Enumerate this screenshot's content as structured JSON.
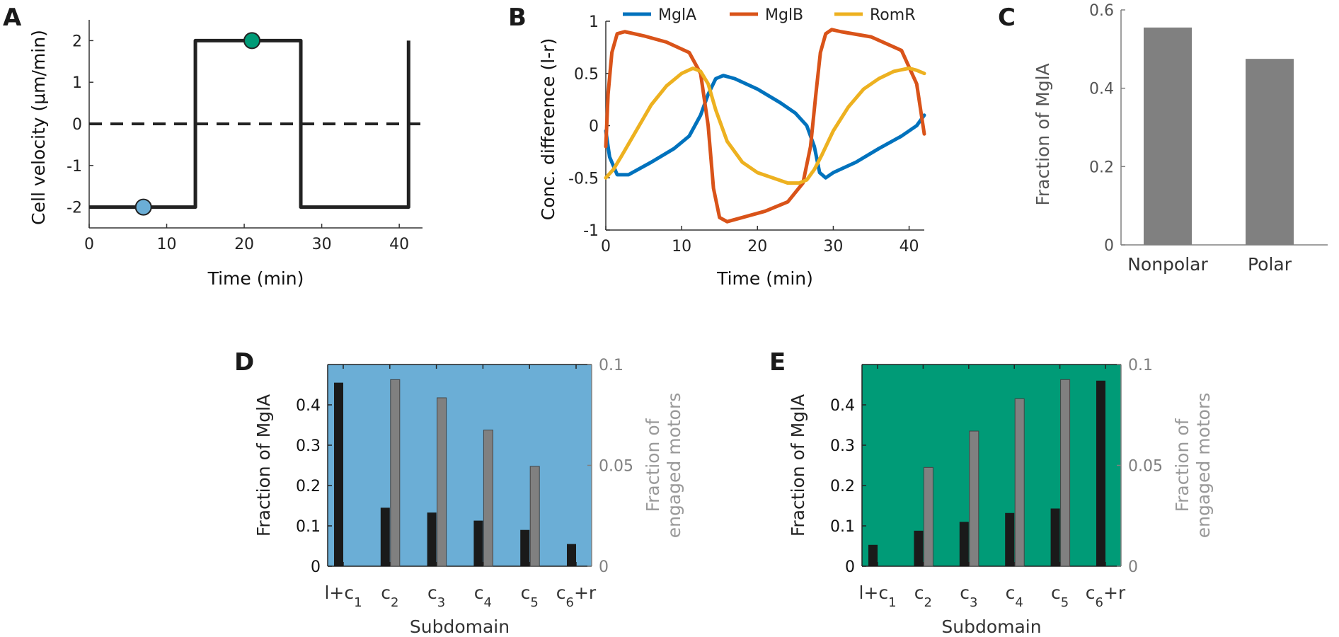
{
  "panels": {
    "A": {
      "letter": "A"
    },
    "B": {
      "letter": "B"
    },
    "C": {
      "letter": "C"
    },
    "D": {
      "letter": "D"
    },
    "E": {
      "letter": "E"
    }
  },
  "colors": {
    "mglA": "#0072BD",
    "mglB": "#D95319",
    "romR": "#EDB120",
    "blue_marker": "#6BAED6",
    "green_marker": "#009B77",
    "panel_d_bg": "#6BAED6",
    "panel_e_bg": "#009B77",
    "bar_gray": "#808080",
    "bar_black": "#1a1a1a",
    "axis_gray": "#808080"
  },
  "chart_data": [
    {
      "id": "A",
      "type": "line",
      "title": "",
      "xlabel": "Time (min)",
      "ylabel": "Cell velocity (μm/min)",
      "xlim": [
        0,
        43
      ],
      "ylim": [
        -2.5,
        2.5
      ],
      "xticks": [
        0,
        10,
        20,
        30,
        40
      ],
      "yticks": [
        -2,
        -1,
        0,
        1,
        2
      ],
      "series": [
        {
          "name": "velocity",
          "x": [
            0,
            13.7,
            13.7,
            27.3,
            27.3,
            41.2,
            41.2
          ],
          "y": [
            -2,
            -2,
            2,
            2,
            -2,
            -2,
            2
          ]
        },
        {
          "name": "zero",
          "x": [
            0,
            43
          ],
          "y": [
            0,
            0
          ],
          "dashed": true
        }
      ],
      "markers": [
        {
          "name": "nonpolar-marker",
          "x": 7,
          "y": -2,
          "color": "blue"
        },
        {
          "name": "polar-marker",
          "x": 21,
          "y": 2,
          "color": "green"
        }
      ]
    },
    {
      "id": "B",
      "type": "line",
      "title": "",
      "xlabel": "Time (min)",
      "ylabel": "Conc. difference (l-r)",
      "xlim": [
        0,
        42
      ],
      "ylim": [
        -1,
        1
      ],
      "xticks": [
        0,
        10,
        20,
        30,
        40
      ],
      "yticks": [
        -1,
        -0.5,
        0,
        0.5,
        1
      ],
      "legend": [
        "MglA",
        "MglB",
        "RomR"
      ],
      "legend_position": "top",
      "series": [
        {
          "name": "MglA",
          "x": [
            0,
            0.5,
            1.5,
            3,
            6,
            9,
            11,
            12.5,
            13.5,
            14.5,
            15.5,
            17,
            20,
            23,
            25,
            26.5,
            27.5,
            28.2,
            29,
            30,
            33,
            36,
            39,
            41,
            42
          ],
          "y": [
            -0.05,
            -0.3,
            -0.47,
            -0.47,
            -0.35,
            -0.22,
            -0.1,
            0.1,
            0.3,
            0.45,
            0.48,
            0.45,
            0.35,
            0.22,
            0.12,
            0.0,
            -0.2,
            -0.45,
            -0.5,
            -0.45,
            -0.35,
            -0.22,
            -0.1,
            0.0,
            0.1
          ]
        },
        {
          "name": "MglB",
          "x": [
            0,
            0.3,
            0.8,
            1.5,
            2.5,
            5,
            8,
            11,
            12.5,
            13.5,
            14.2,
            15,
            16,
            18,
            21,
            24,
            26,
            27,
            27.7,
            28.3,
            29,
            29.8,
            31,
            35,
            39,
            41,
            42
          ],
          "y": [
            -0.2,
            0.3,
            0.7,
            0.88,
            0.9,
            0.86,
            0.8,
            0.7,
            0.5,
            0.0,
            -0.6,
            -0.88,
            -0.92,
            -0.88,
            -0.82,
            -0.73,
            -0.55,
            -0.2,
            0.3,
            0.7,
            0.88,
            0.92,
            0.9,
            0.85,
            0.72,
            0.4,
            -0.08
          ]
        },
        {
          "name": "RomR",
          "x": [
            0,
            1,
            2,
            4,
            6,
            8,
            10,
            11.5,
            12.5,
            13.5,
            14.5,
            16,
            18,
            20,
            22,
            24,
            25.5,
            26.5,
            27.5,
            28.5,
            30,
            32,
            34,
            36,
            38,
            40,
            41,
            42
          ],
          "y": [
            -0.5,
            -0.42,
            -0.3,
            -0.05,
            0.2,
            0.38,
            0.5,
            0.55,
            0.52,
            0.4,
            0.15,
            -0.15,
            -0.35,
            -0.45,
            -0.5,
            -0.55,
            -0.55,
            -0.52,
            -0.42,
            -0.28,
            -0.05,
            0.18,
            0.35,
            0.45,
            0.52,
            0.55,
            0.53,
            0.5
          ]
        }
      ]
    },
    {
      "id": "C",
      "type": "bar",
      "title": "",
      "xlabel": "",
      "ylabel": "Fraction of MglA",
      "ylim": [
        0,
        0.6
      ],
      "yticks": [
        0,
        0.2,
        0.4,
        0.6
      ],
      "ytick_labels": [
        "0",
        "0.2",
        "0.4",
        "0.6"
      ],
      "categories": [
        "Nonpolar",
        "Polar"
      ],
      "values": [
        0.555,
        0.475
      ]
    },
    {
      "id": "D",
      "type": "bar",
      "title": "",
      "xlabel": "Subdomain",
      "ylabel": "Fraction of MglA",
      "ylabel_right": [
        "Fraction of",
        "engaged motors"
      ],
      "ylim": [
        0,
        0.5
      ],
      "ylim_right": [
        0,
        0.1
      ],
      "yticks": [
        0,
        0.1,
        0.2,
        0.3,
        0.4
      ],
      "ytick_labels": [
        "0",
        "0.1",
        "0.2",
        "0.3",
        "0.4"
      ],
      "yticks_right": [
        0,
        0.05,
        0.1
      ],
      "ytick_labels_right": [
        "0",
        "0.05",
        "0.1"
      ],
      "categories": [
        {
          "main": "l+c",
          "sub": "1",
          "tail": ""
        },
        {
          "main": "c",
          "sub": "2",
          "tail": ""
        },
        {
          "main": "c",
          "sub": "3",
          "tail": ""
        },
        {
          "main": "c",
          "sub": "4",
          "tail": ""
        },
        {
          "main": "c",
          "sub": "5",
          "tail": ""
        },
        {
          "main": "c",
          "sub": "6",
          "tail": "+r"
        }
      ],
      "series": [
        {
          "name": "Fraction of MglA",
          "axis": "left",
          "values": [
            0.455,
            0.145,
            0.133,
            0.113,
            0.09,
            0.055
          ]
        },
        {
          "name": "Fraction of engaged motors",
          "axis": "right",
          "values": [
            0,
            0.0925,
            0.0835,
            0.0675,
            0.0495,
            0
          ]
        }
      ]
    },
    {
      "id": "E",
      "type": "bar",
      "title": "",
      "xlabel": "Subdomain",
      "ylabel": "Fraction of MglA",
      "ylabel_right": [
        "Fraction of",
        "engaged motors"
      ],
      "ylim": [
        0,
        0.5
      ],
      "ylim_right": [
        0,
        0.1
      ],
      "yticks": [
        0,
        0.1,
        0.2,
        0.3,
        0.4
      ],
      "ytick_labels": [
        "0",
        "0.1",
        "0.2",
        "0.3",
        "0.4"
      ],
      "yticks_right": [
        0,
        0.05,
        0.1
      ],
      "ytick_labels_right": [
        "0",
        "0.05",
        "0.1"
      ],
      "categories": [
        {
          "main": "l+c",
          "sub": "1",
          "tail": ""
        },
        {
          "main": "c",
          "sub": "2",
          "tail": ""
        },
        {
          "main": "c",
          "sub": "3",
          "tail": ""
        },
        {
          "main": "c",
          "sub": "4",
          "tail": ""
        },
        {
          "main": "c",
          "sub": "5",
          "tail": ""
        },
        {
          "main": "c",
          "sub": "6",
          "tail": "+r"
        }
      ],
      "series": [
        {
          "name": "Fraction of MglA",
          "axis": "left",
          "values": [
            0.053,
            0.088,
            0.11,
            0.132,
            0.143,
            0.46
          ]
        },
        {
          "name": "Fraction of engaged motors",
          "axis": "right",
          "values": [
            0,
            0.049,
            0.067,
            0.083,
            0.0925,
            0
          ]
        }
      ]
    }
  ]
}
